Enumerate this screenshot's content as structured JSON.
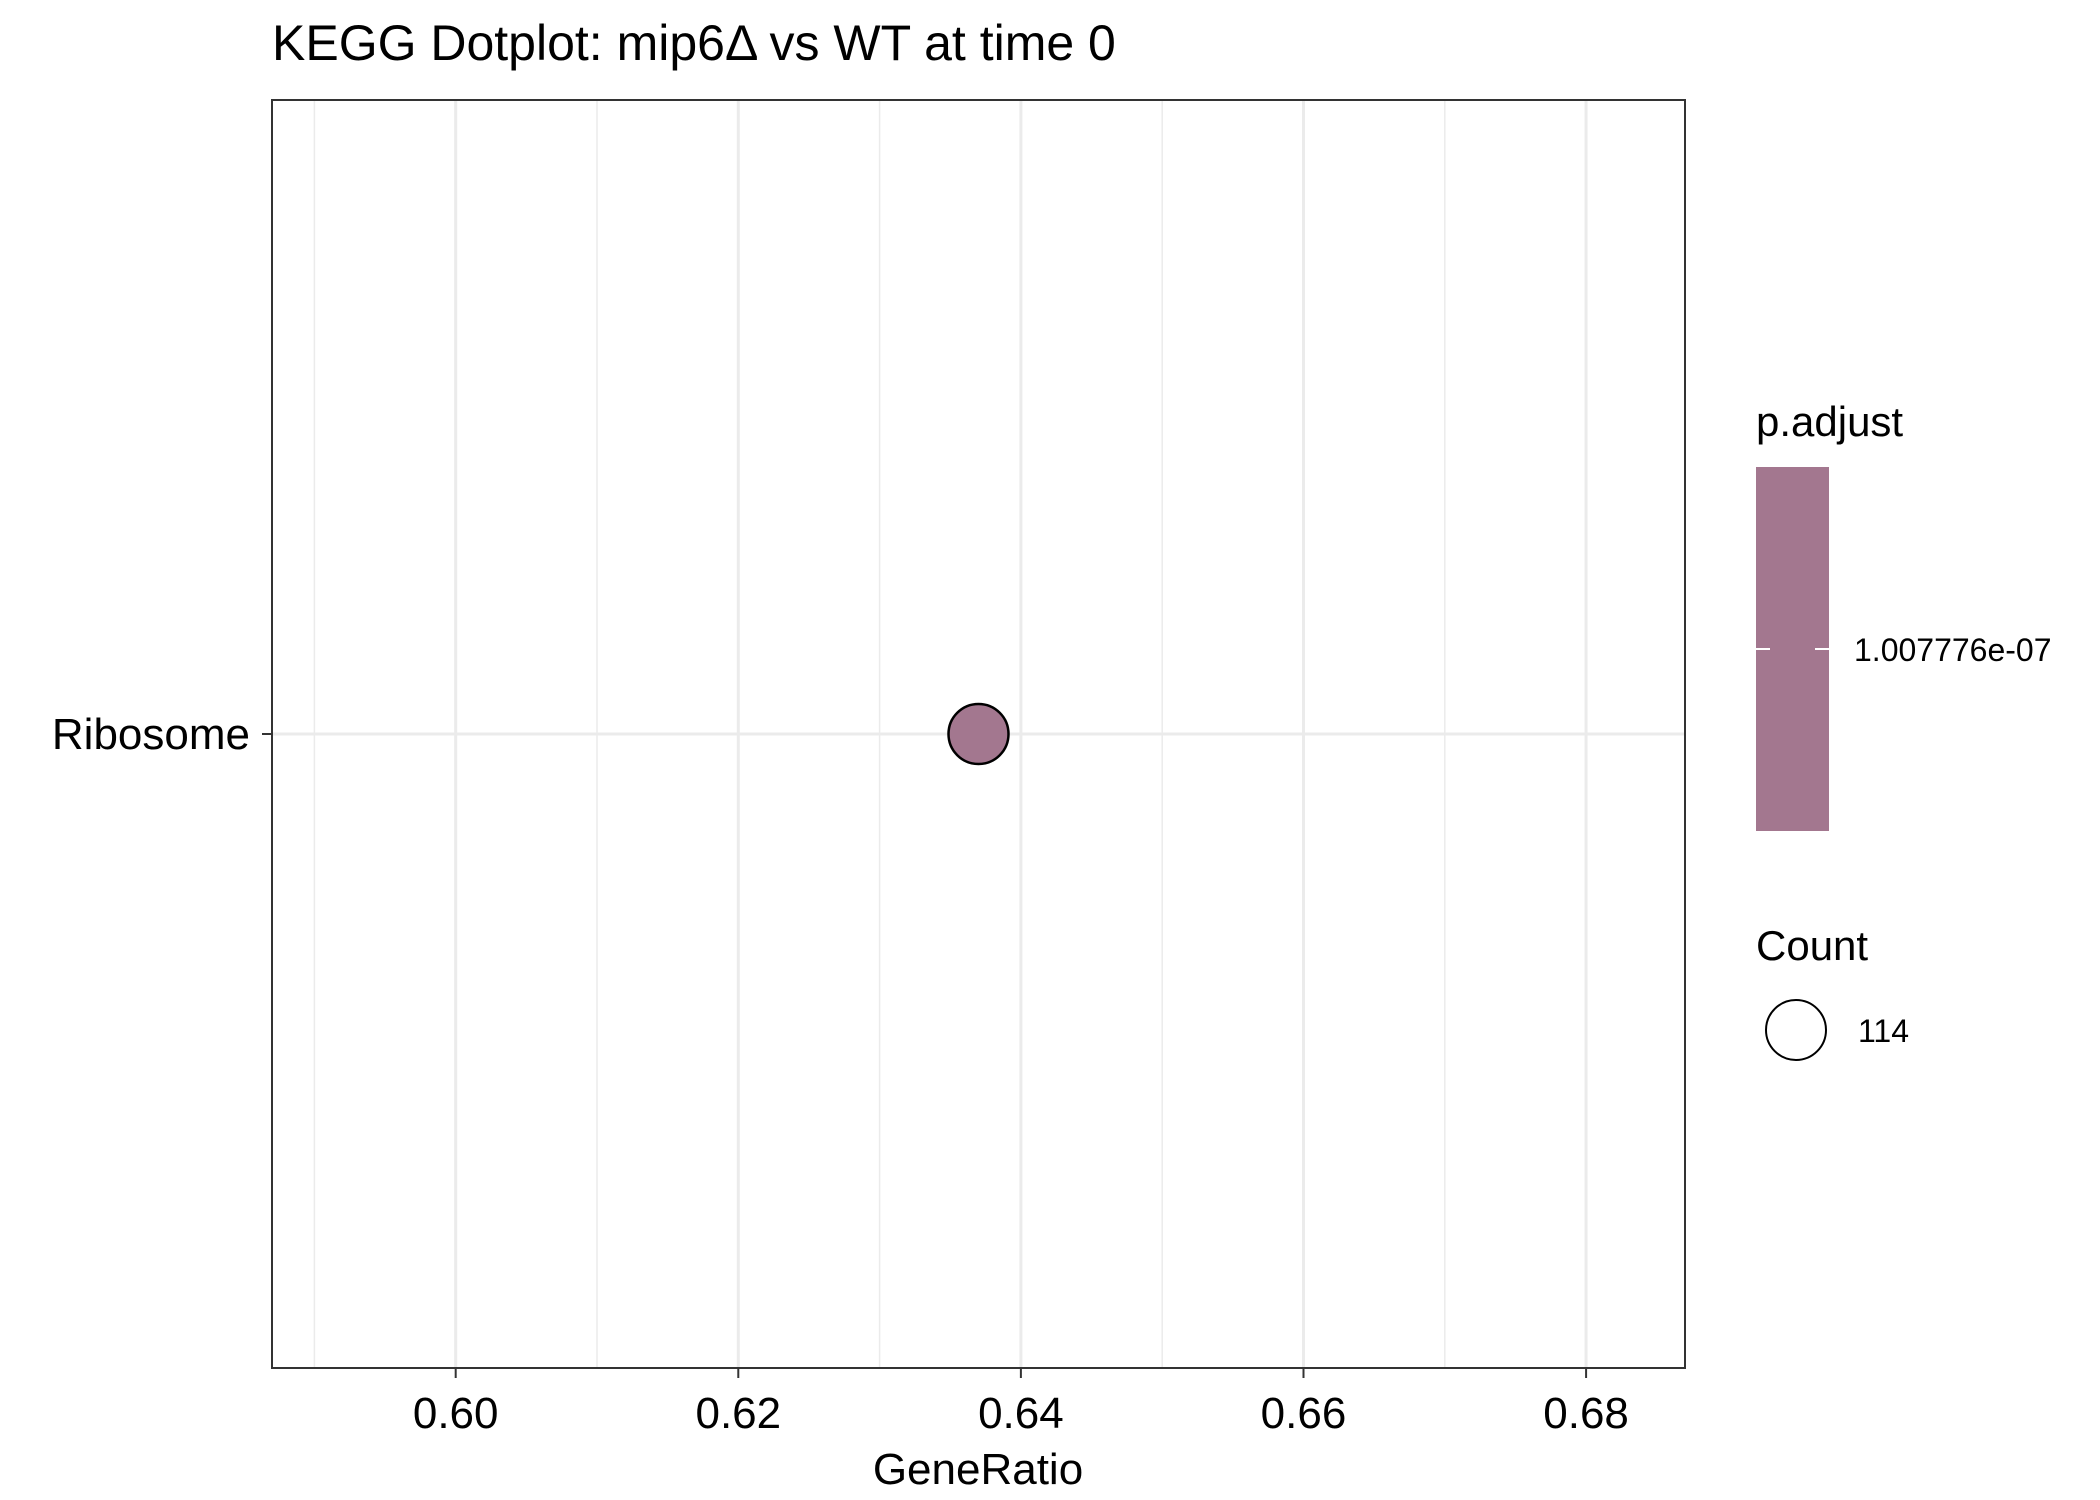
{
  "chart_data": {
    "type": "scatter",
    "title": "KEGG Dotplot: mip6Δ vs WT at time 0",
    "xlabel": "GeneRatio",
    "ylabel": "",
    "xlim": [
      0.587,
      0.687
    ],
    "x_ticks": [
      0.6,
      0.62,
      0.64,
      0.66,
      0.68
    ],
    "x_tick_labels": [
      "0.60",
      "0.62",
      "0.64",
      "0.66",
      "0.68"
    ],
    "categories": [
      "Ribosome"
    ],
    "grid": true,
    "points": [
      {
        "category": "Ribosome",
        "x": 0.637,
        "count": 114,
        "p_adjust": 1.007776e-07,
        "color": "#a3778f"
      }
    ],
    "legend": {
      "placement": "right",
      "color": {
        "title": "p.adjust",
        "label": "1.007776e-07",
        "fill": "#a3778f"
      },
      "size": {
        "title": "Count",
        "label": "114"
      }
    }
  }
}
